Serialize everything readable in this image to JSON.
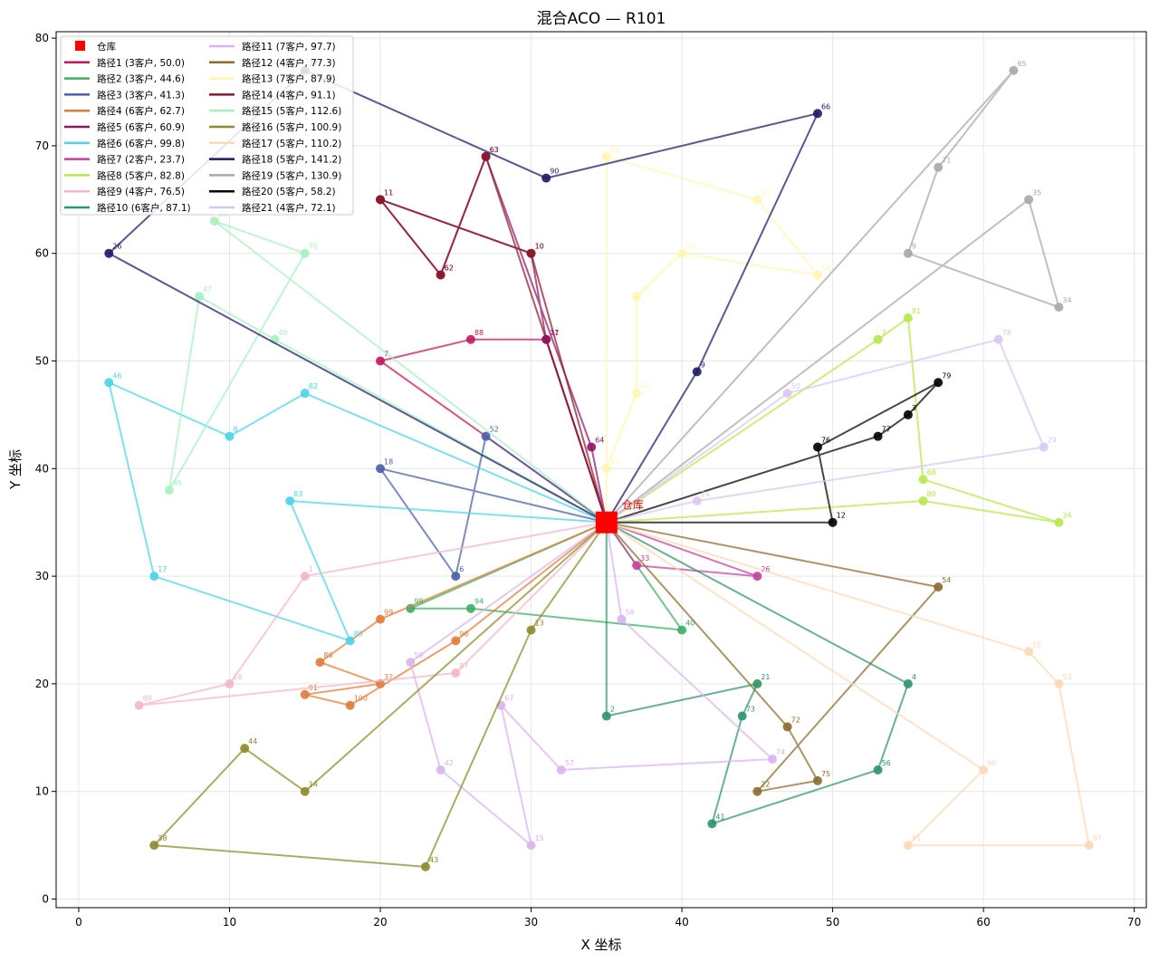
{
  "chart_data": {
    "type": "line",
    "title": "混合ACO — R101",
    "xlabel": "X 坐标",
    "ylabel": "Y 坐标",
    "xlim": [
      -1.5,
      70.8
    ],
    "ylim": [
      -0.8,
      80.6
    ],
    "xticks": [
      0,
      10,
      20,
      30,
      40,
      50,
      60,
      70
    ],
    "yticks": [
      0,
      10,
      20,
      30,
      40,
      50,
      60,
      70,
      80
    ],
    "grid": true,
    "legend_position": "top-left",
    "depot": {
      "name": "仓库",
      "x": 35,
      "y": 35,
      "color": "#ff0000",
      "label": "仓库"
    },
    "series": [
      {
        "name": "路径1 (3客户, 50.0)",
        "color": "#c2185b",
        "points": [
          {
            "id": "7",
            "x": 20,
            "y": 50
          },
          {
            "id": "88",
            "x": 26,
            "y": 52
          },
          {
            "id": "31",
            "x": 31,
            "y": 52
          }
        ]
      },
      {
        "name": "路径2 (3客户, 44.6)",
        "color": "#3cae63",
        "points": [
          {
            "id": "98",
            "x": 22,
            "y": 27
          },
          {
            "id": "94",
            "x": 26,
            "y": 27
          },
          {
            "id": "40",
            "x": 40,
            "y": 25
          }
        ]
      },
      {
        "name": "路径3 (3客户, 41.3)",
        "color": "#4a5ea8",
        "points": [
          {
            "id": "18",
            "x": 20,
            "y": 40
          },
          {
            "id": "6",
            "x": 25,
            "y": 30
          },
          {
            "id": "52",
            "x": 27,
            "y": 43
          }
        ]
      },
      {
        "name": "路径4 (6客户, 62.7)",
        "color": "#e07b39",
        "points": [
          {
            "id": "99",
            "x": 20,
            "y": 26
          },
          {
            "id": "86",
            "x": 16,
            "y": 22
          },
          {
            "id": "32",
            "x": 20,
            "y": 20
          },
          {
            "id": "91",
            "x": 15,
            "y": 19
          },
          {
            "id": "100",
            "x": 18,
            "y": 18
          },
          {
            "id": "96",
            "x": 25,
            "y": 24
          }
        ]
      },
      {
        "name": "路径5 (6客户, 60.9)",
        "color": "#8e1566",
        "points": [
          {
            "id": "27",
            "x": 31,
            "y": 52
          },
          {
            "id": "10",
            "x": 30,
            "y": 60
          },
          {
            "id": "11",
            "x": 20,
            "y": 65
          },
          {
            "id": "62",
            "x": 24,
            "y": 58
          },
          {
            "id": "63",
            "x": 27,
            "y": 69
          },
          {
            "id": "64",
            "x": 34,
            "y": 42
          }
        ]
      },
      {
        "name": "路径6 (6客户, 99.8)",
        "color": "#4dd4e6",
        "points": [
          {
            "id": "82",
            "x": 15,
            "y": 47
          },
          {
            "id": "8",
            "x": 10,
            "y": 43
          },
          {
            "id": "46",
            "x": 2,
            "y": 48
          },
          {
            "id": "17",
            "x": 5,
            "y": 30
          },
          {
            "id": "85",
            "x": 18,
            "y": 24
          },
          {
            "id": "83",
            "x": 14,
            "y": 37
          }
        ]
      },
      {
        "name": "路径7 (2客户, 23.7)",
        "color": "#c2409e",
        "points": [
          {
            "id": "33",
            "x": 37,
            "y": 31
          },
          {
            "id": "26",
            "x": 45,
            "y": 30
          }
        ]
      },
      {
        "name": "路径8 (5客户, 82.8)",
        "color": "#b7e84a",
        "points": [
          {
            "id": "80",
            "x": 56,
            "y": 37
          },
          {
            "id": "34",
            "x": 65,
            "y": 35
          },
          {
            "id": "68",
            "x": 56,
            "y": 39
          },
          {
            "id": "81",
            "x": 55,
            "y": 54
          },
          {
            "id": "3",
            "x": 53,
            "y": 52
          }
        ]
      },
      {
        "name": "路径9 (4客户, 76.5)",
        "color": "#f4b6c8",
        "points": [
          {
            "id": "1",
            "x": 15,
            "y": 30
          },
          {
            "id": "16",
            "x": 10,
            "y": 20
          },
          {
            "id": "89",
            "x": 4,
            "y": 18
          },
          {
            "id": "87",
            "x": 25,
            "y": 21
          }
        ]
      },
      {
        "name": "路径10 (6客户, 87.1)",
        "color": "#2e9467",
        "points": [
          {
            "id": "2",
            "x": 35,
            "y": 17
          },
          {
            "id": "21",
            "x": 45,
            "y": 20
          },
          {
            "id": "73",
            "x": 44,
            "y": 17
          },
          {
            "id": "41",
            "x": 42,
            "y": 7
          },
          {
            "id": "56",
            "x": 53,
            "y": 12
          },
          {
            "id": "4",
            "x": 55,
            "y": 20
          }
        ]
      },
      {
        "name": "路径11 (7客户, 97.7)",
        "color": "#d9b3f0",
        "points": [
          {
            "id": "59",
            "x": 22,
            "y": 22
          },
          {
            "id": "42",
            "x": 24,
            "y": 12
          },
          {
            "id": "15",
            "x": 30,
            "y": 5
          },
          {
            "id": "67",
            "x": 28,
            "y": 18
          },
          {
            "id": "57",
            "x": 32,
            "y": 12
          },
          {
            "id": "74",
            "x": 46,
            "y": 13
          },
          {
            "id": "58",
            "x": 36,
            "y": 26
          }
        ]
      },
      {
        "name": "路径12 (4客户, 77.3)",
        "color": "#8b6c2e",
        "points": [
          {
            "id": "72",
            "x": 47,
            "y": 16
          },
          {
            "id": "75",
            "x": 49,
            "y": 11
          },
          {
            "id": "22",
            "x": 45,
            "y": 10
          },
          {
            "id": "54",
            "x": 57,
            "y": 29
          }
        ]
      },
      {
        "name": "路径13 (7客户, 87.9)",
        "color": "#fff6b0",
        "points": [
          {
            "id": "84",
            "x": 35,
            "y": 69
          },
          {
            "id": "35",
            "x": 45,
            "y": 65
          },
          {
            "id": "19",
            "x": 49,
            "y": 58
          },
          {
            "id": "20",
            "x": 40,
            "y": 60
          },
          {
            "id": "23",
            "x": 37,
            "y": 56
          },
          {
            "id": "49",
            "x": 37,
            "y": 47
          },
          {
            "id": "93",
            "x": 35,
            "y": 40
          }
        ]
      },
      {
        "name": "路径14 (4客户, 91.1)",
        "color": "#8b1a2b",
        "points": [
          {
            "id": "63",
            "x": 27,
            "y": 69
          },
          {
            "id": "62",
            "x": 24,
            "y": 58
          },
          {
            "id": "11",
            "x": 20,
            "y": 65
          },
          {
            "id": "10",
            "x": 30,
            "y": 60
          }
        ]
      },
      {
        "name": "路径15 (5客户, 112.6)",
        "color": "#a8f0c0",
        "points": [
          {
            "id": "48",
            "x": 13,
            "y": 52
          },
          {
            "id": "47",
            "x": 8,
            "y": 56
          },
          {
            "id": "45",
            "x": 6,
            "y": 38
          },
          {
            "id": "70",
            "x": 15,
            "y": 60
          },
          {
            "id": "69",
            "x": 9,
            "y": 63
          }
        ]
      },
      {
        "name": "路径16 (5客户, 100.9)",
        "color": "#8c8a2a",
        "points": [
          {
            "id": "13",
            "x": 30,
            "y": 25
          },
          {
            "id": "43",
            "x": 23,
            "y": 3
          },
          {
            "id": "38",
            "x": 5,
            "y": 5
          },
          {
            "id": "44",
            "x": 11,
            "y": 14
          },
          {
            "id": "14",
            "x": 15,
            "y": 10
          }
        ]
      },
      {
        "name": "路径17 (5客户, 110.2)",
        "color": "#fcd8b4",
        "points": [
          {
            "id": "55",
            "x": 63,
            "y": 23
          },
          {
            "id": "53",
            "x": 65,
            "y": 20
          },
          {
            "id": "97",
            "x": 67,
            "y": 5
          },
          {
            "id": "51",
            "x": 55,
            "y": 5
          },
          {
            "id": "90",
            "x": 60,
            "y": 12
          }
        ]
      },
      {
        "name": "路径18 (5客户, 141.2)",
        "color": "#1a1a66",
        "points": [
          {
            "id": "9",
            "x": 41,
            "y": 49
          },
          {
            "id": "66",
            "x": 49,
            "y": 73
          },
          {
            "id": "90",
            "x": 31,
            "y": 67
          },
          {
            "id": "77",
            "x": 15,
            "y": 77
          },
          {
            "id": "26",
            "x": 2,
            "y": 60
          }
        ]
      },
      {
        "name": "路径19 (5客户, 130.9)",
        "color": "#a8a8a8",
        "points": [
          {
            "id": "65",
            "x": 62,
            "y": 77
          },
          {
            "id": "71",
            "x": 57,
            "y": 68
          },
          {
            "id": "9",
            "x": 55,
            "y": 60
          },
          {
            "id": "34",
            "x": 65,
            "y": 55
          },
          {
            "id": "35",
            "x": 63,
            "y": 65
          }
        ]
      },
      {
        "name": "路径20 (5客户, 58.2)",
        "color": "#000000",
        "points": [
          {
            "id": "12",
            "x": 50,
            "y": 35
          },
          {
            "id": "76",
            "x": 49,
            "y": 42
          },
          {
            "id": "79",
            "x": 57,
            "y": 48
          },
          {
            "id": "3",
            "x": 55,
            "y": 45
          },
          {
            "id": "77",
            "x": 53,
            "y": 43
          }
        ]
      },
      {
        "name": "路径21 (4客户, 72.1)",
        "color": "#d8c8f0",
        "points": [
          {
            "id": "50",
            "x": 47,
            "y": 47
          },
          {
            "id": "78",
            "x": 61,
            "y": 52
          },
          {
            "id": "29",
            "x": 64,
            "y": 42
          },
          {
            "id": "24",
            "x": 41,
            "y": 37
          }
        ]
      }
    ]
  }
}
